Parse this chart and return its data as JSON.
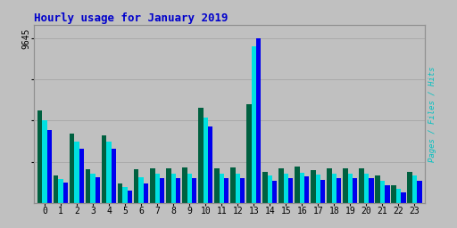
{
  "title": "Hourly usage for January 2019",
  "ytick_label": "9645",
  "hours": [
    0,
    1,
    2,
    3,
    4,
    5,
    6,
    7,
    8,
    9,
    10,
    11,
    12,
    13,
    14,
    15,
    16,
    17,
    18,
    19,
    20,
    21,
    22,
    23
  ],
  "pages": [
    0.56,
    0.165,
    0.42,
    0.205,
    0.41,
    0.12,
    0.205,
    0.21,
    0.21,
    0.215,
    0.58,
    0.21,
    0.215,
    0.6,
    0.19,
    0.21,
    0.22,
    0.2,
    0.21,
    0.21,
    0.21,
    0.165,
    0.105,
    0.19
  ],
  "files": [
    0.5,
    0.145,
    0.37,
    0.18,
    0.37,
    0.095,
    0.155,
    0.175,
    0.175,
    0.175,
    0.52,
    0.175,
    0.175,
    0.95,
    0.165,
    0.175,
    0.185,
    0.17,
    0.175,
    0.175,
    0.175,
    0.135,
    0.085,
    0.165
  ],
  "hits": [
    0.44,
    0.125,
    0.33,
    0.155,
    0.33,
    0.075,
    0.12,
    0.15,
    0.15,
    0.15,
    0.465,
    0.15,
    0.15,
    1.0,
    0.135,
    0.15,
    0.16,
    0.14,
    0.15,
    0.15,
    0.15,
    0.11,
    0.065,
    0.135
  ],
  "pages_color": "#006040",
  "files_color": "#00e0e0",
  "hits_color": "#0000ee",
  "background_color": "#c0c0c0",
  "title_color": "#0000cc",
  "bar_width": 0.3,
  "ylim_max": 1.08,
  "grid_color": "#aaaaaa",
  "label_pages_color": "#00c0c0",
  "label_files_color": "#008040",
  "label_hits_color": "#0000cc"
}
